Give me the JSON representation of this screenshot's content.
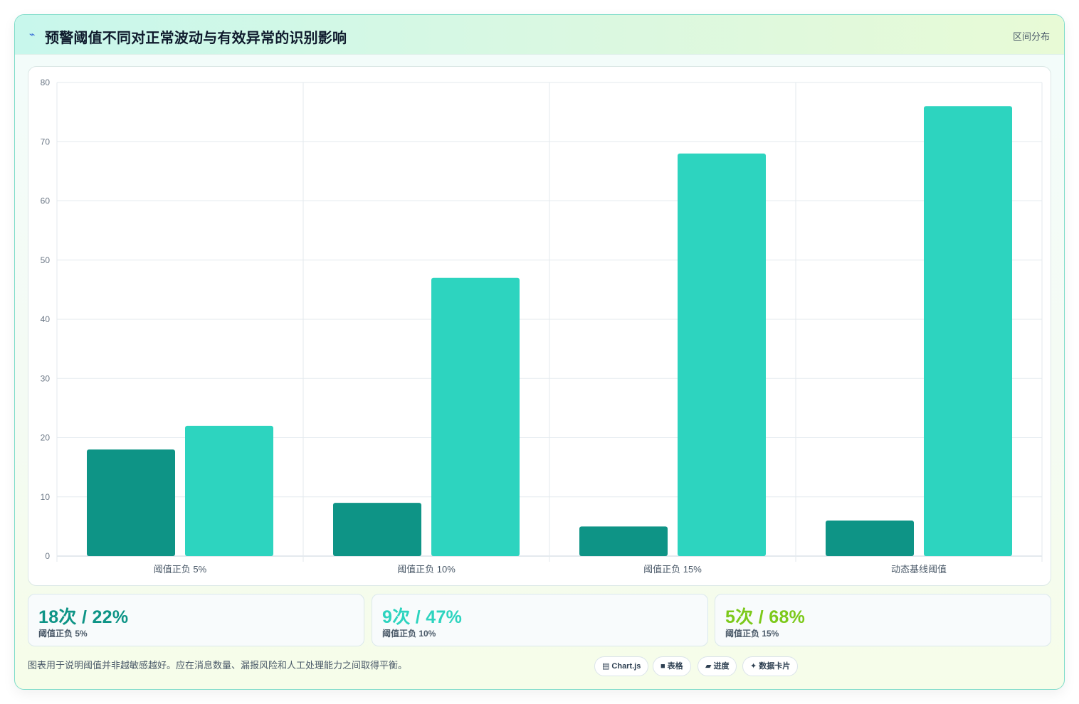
{
  "header": {
    "icon": "wave-icon",
    "title": "预警阈值不同对正常波动与有效异常的识别影响",
    "tag": "区间分布"
  },
  "chart_data": {
    "type": "bar",
    "categories": [
      "阈值正负 5%",
      "阈值正负 10%",
      "阈值正负 15%",
      "动态基线阈值"
    ],
    "series": [
      {
        "values": [
          18,
          9,
          5,
          6
        ],
        "color": "#0e9486"
      },
      {
        "values": [
          22,
          47,
          68,
          76
        ],
        "color": "#2dd4bf"
      }
    ],
    "ylim": [
      0,
      80
    ],
    "yticks": [
      0,
      10,
      20,
      30,
      40,
      50,
      60,
      70,
      80
    ],
    "grid": true,
    "title": "",
    "xlabel": "",
    "ylabel": ""
  },
  "stats": [
    {
      "value": "18次 / 22%",
      "label": "阈值正负 5%",
      "color": "#0e9486"
    },
    {
      "value": "9次 / 47%",
      "label": "阈值正负 10%",
      "color": "#2dd4bf"
    },
    {
      "value": "5次 / 68%",
      "label": "阈值正负 15%",
      "color": "#7cc91a"
    }
  ],
  "footer": {
    "note": "图表用于说明阈值并非越敏感越好。应在消息数量、漏报风险和人工处理能力之间取得平衡。",
    "chips": [
      {
        "icon": "chart-icon",
        "glyph": "▤",
        "label": "Chart.js"
      },
      {
        "icon": "table-icon",
        "glyph": "■",
        "label": "表格"
      },
      {
        "icon": "progress-icon",
        "glyph": "▰",
        "label": "进度"
      },
      {
        "icon": "sparkle-icon",
        "glyph": "✦",
        "label": "数据卡片"
      }
    ]
  }
}
